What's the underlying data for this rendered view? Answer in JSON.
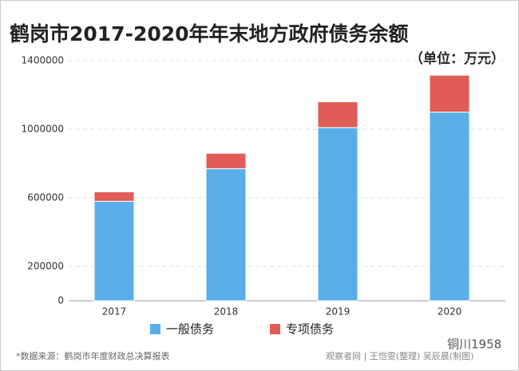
{
  "chart_data": {
    "type": "stacked_bar",
    "title": "鹤岗市2017-2020年年末地方政府债务余额",
    "subtitle": "（单位：万元）",
    "categories": [
      "2017",
      "2018",
      "2019",
      "2020"
    ],
    "series": [
      {
        "name": "一般债务",
        "color": "#5aaee8",
        "values": [
          580000,
          770000,
          1010000,
          1100000
        ]
      },
      {
        "name": "专项债务",
        "color": "#e15b57",
        "values": [
          55000,
          90000,
          150000,
          215000
        ]
      }
    ],
    "ylim": [
      0,
      1400000
    ],
    "yticks": [
      0,
      200000,
      600000,
      1000000,
      1400000
    ],
    "grid": true,
    "legend": "bottom",
    "source": "*数据来源：鹤岗市年度财政总决算报表",
    "credit": "观察者网 | 王恺雯(整理) 吴辰晨(制图)",
    "watermark": "铜川1958"
  }
}
